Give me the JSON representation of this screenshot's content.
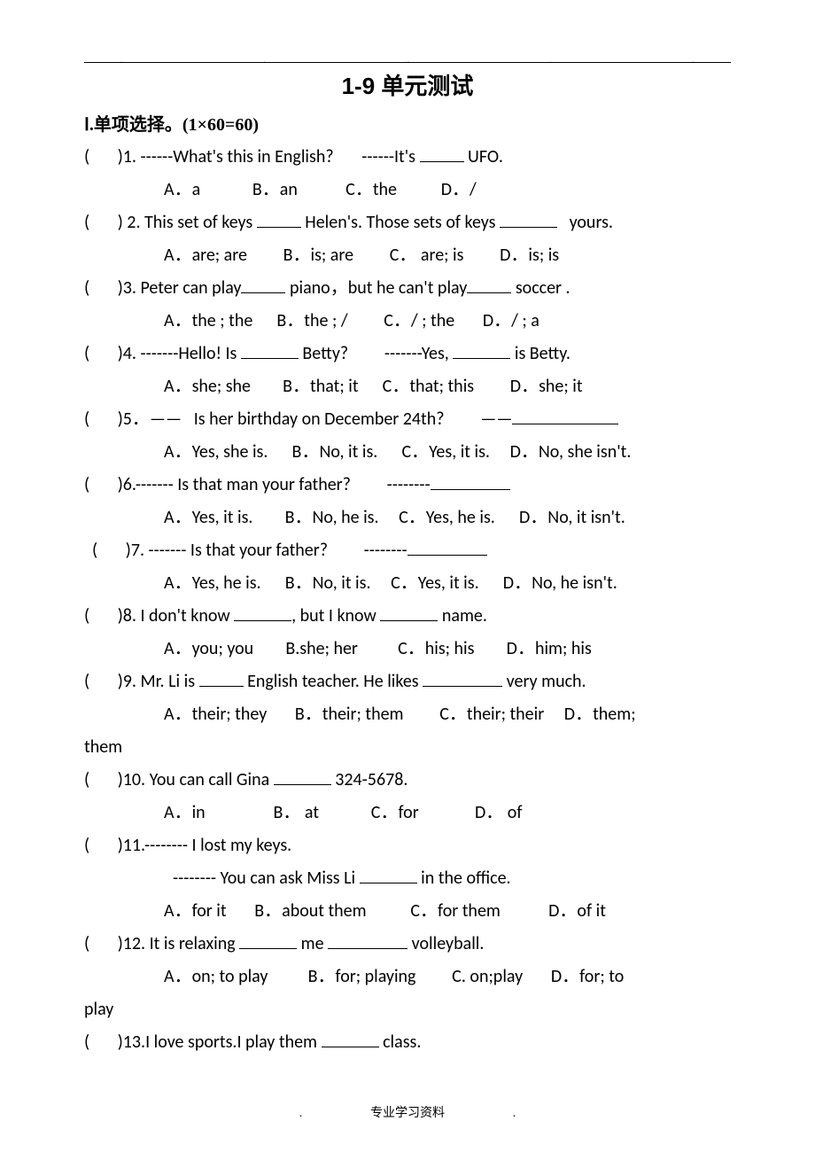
{
  "header": {
    "title": "1-9 单元测试"
  },
  "section": {
    "heading": "Ⅰ.单项选择。(1×60=60)"
  },
  "questions": [
    {
      "n": "1",
      "stem_pre": "(       )1. ------What's this in English?       ------It's ",
      "stem_post": " UFO.",
      "blank": "short",
      "opts": "A．a             B．an            C．the           D．/"
    },
    {
      "n": "2",
      "stem_pre": "(       ) 2. This set of keys ",
      "stem_mid": " Helen's. Those sets of keys ",
      "stem_post": "   yours.",
      "blank": "short",
      "blank2": "med",
      "opts": "A．are; are         B．is; are         C． are; is         D．is; is"
    },
    {
      "n": "3",
      "stem_pre": "(       )3. Peter can play",
      "stem_mid": " piano，but he can't play",
      "stem_post": " soccer .",
      "blank": "short",
      "blank2": "short",
      "opts": "A．the ; the      B．the ; /         C．/ ; the       D．/ ; a"
    },
    {
      "n": "4",
      "stem_pre": "(       )4. -------Hello! Is ",
      "stem_mid": " Betty?         -------Yes, ",
      "stem_post": " is Betty.",
      "blank": "med",
      "blank2": "med",
      "opts": "A．she; she        B．that; it      C．that; this         D．she; it"
    },
    {
      "n": "5",
      "stem_pre": "(       )5．——   Is her birthday on December 24th?         ——",
      "stem_post": "",
      "blank": "xl",
      "opts": "A．Yes, she is.      B．No, it is.      C．Yes, it is.     D．No, she isn't."
    },
    {
      "n": "6",
      "stem_pre": "(       )6.------- Is that man your father?         --------",
      "stem_post": "",
      "blank": "long",
      "opts": "A．Yes, it is.        B．No, he is.     C．Yes, he is.      D．No, it isn't."
    },
    {
      "n": "7",
      "stem_pre": "  (       )7. ------- Is that your father?         --------",
      "stem_post": "",
      "blank": "long",
      "opts": "A．Yes, he is.      B．No, it is.     C．Yes, it is.      D．No, he isn't."
    },
    {
      "n": "8",
      "stem_pre": "(       )8. I don't know ",
      "stem_mid": ", but I know ",
      "stem_post": " name.",
      "blank": "med",
      "blank2": "med",
      "opts": "A．you; you        B.she; her          C．his; his        D．him; his"
    },
    {
      "n": "9",
      "stem_pre": "(       )9. Mr. Li is ",
      "stem_mid": " English teacher. He likes ",
      "stem_post": " very much.",
      "blank": "short",
      "blank2": "long",
      "opts": "A．their; they       B．their; them         C．their; their     D．them; ",
      "wrap": "them"
    },
    {
      "n": "10",
      "stem_pre": "(       )10. You can call Gina ",
      "stem_post": " 324-5678.",
      "blank": "med",
      "opts": "A．in                 B． at             C．for              D． of"
    },
    {
      "n": "11",
      "stem_pre": "(       )11.-------- I lost my keys.",
      "cont": "-------- You can ask Miss Li ",
      "cont_post": " in the office.",
      "blank": "med",
      "opts": "A．for it       B．about them           C．for them            D．of it"
    },
    {
      "n": "12",
      "stem_pre": "(       )12. It is relaxing ",
      "stem_mid": " me ",
      "stem_post": " volleyball.",
      "blank": "med",
      "blank2": "long",
      "opts": "A．on; to play          B．for; playing         C. on;play       D．for; to ",
      "wrap": "play"
    },
    {
      "n": "13",
      "stem_pre": "(       )13.I love sports.I play them ",
      "stem_post": " class.",
      "blank": "med"
    }
  ],
  "footer": {
    "left_dot": ".",
    "text": "专业学习资料",
    "right_dot": "."
  }
}
